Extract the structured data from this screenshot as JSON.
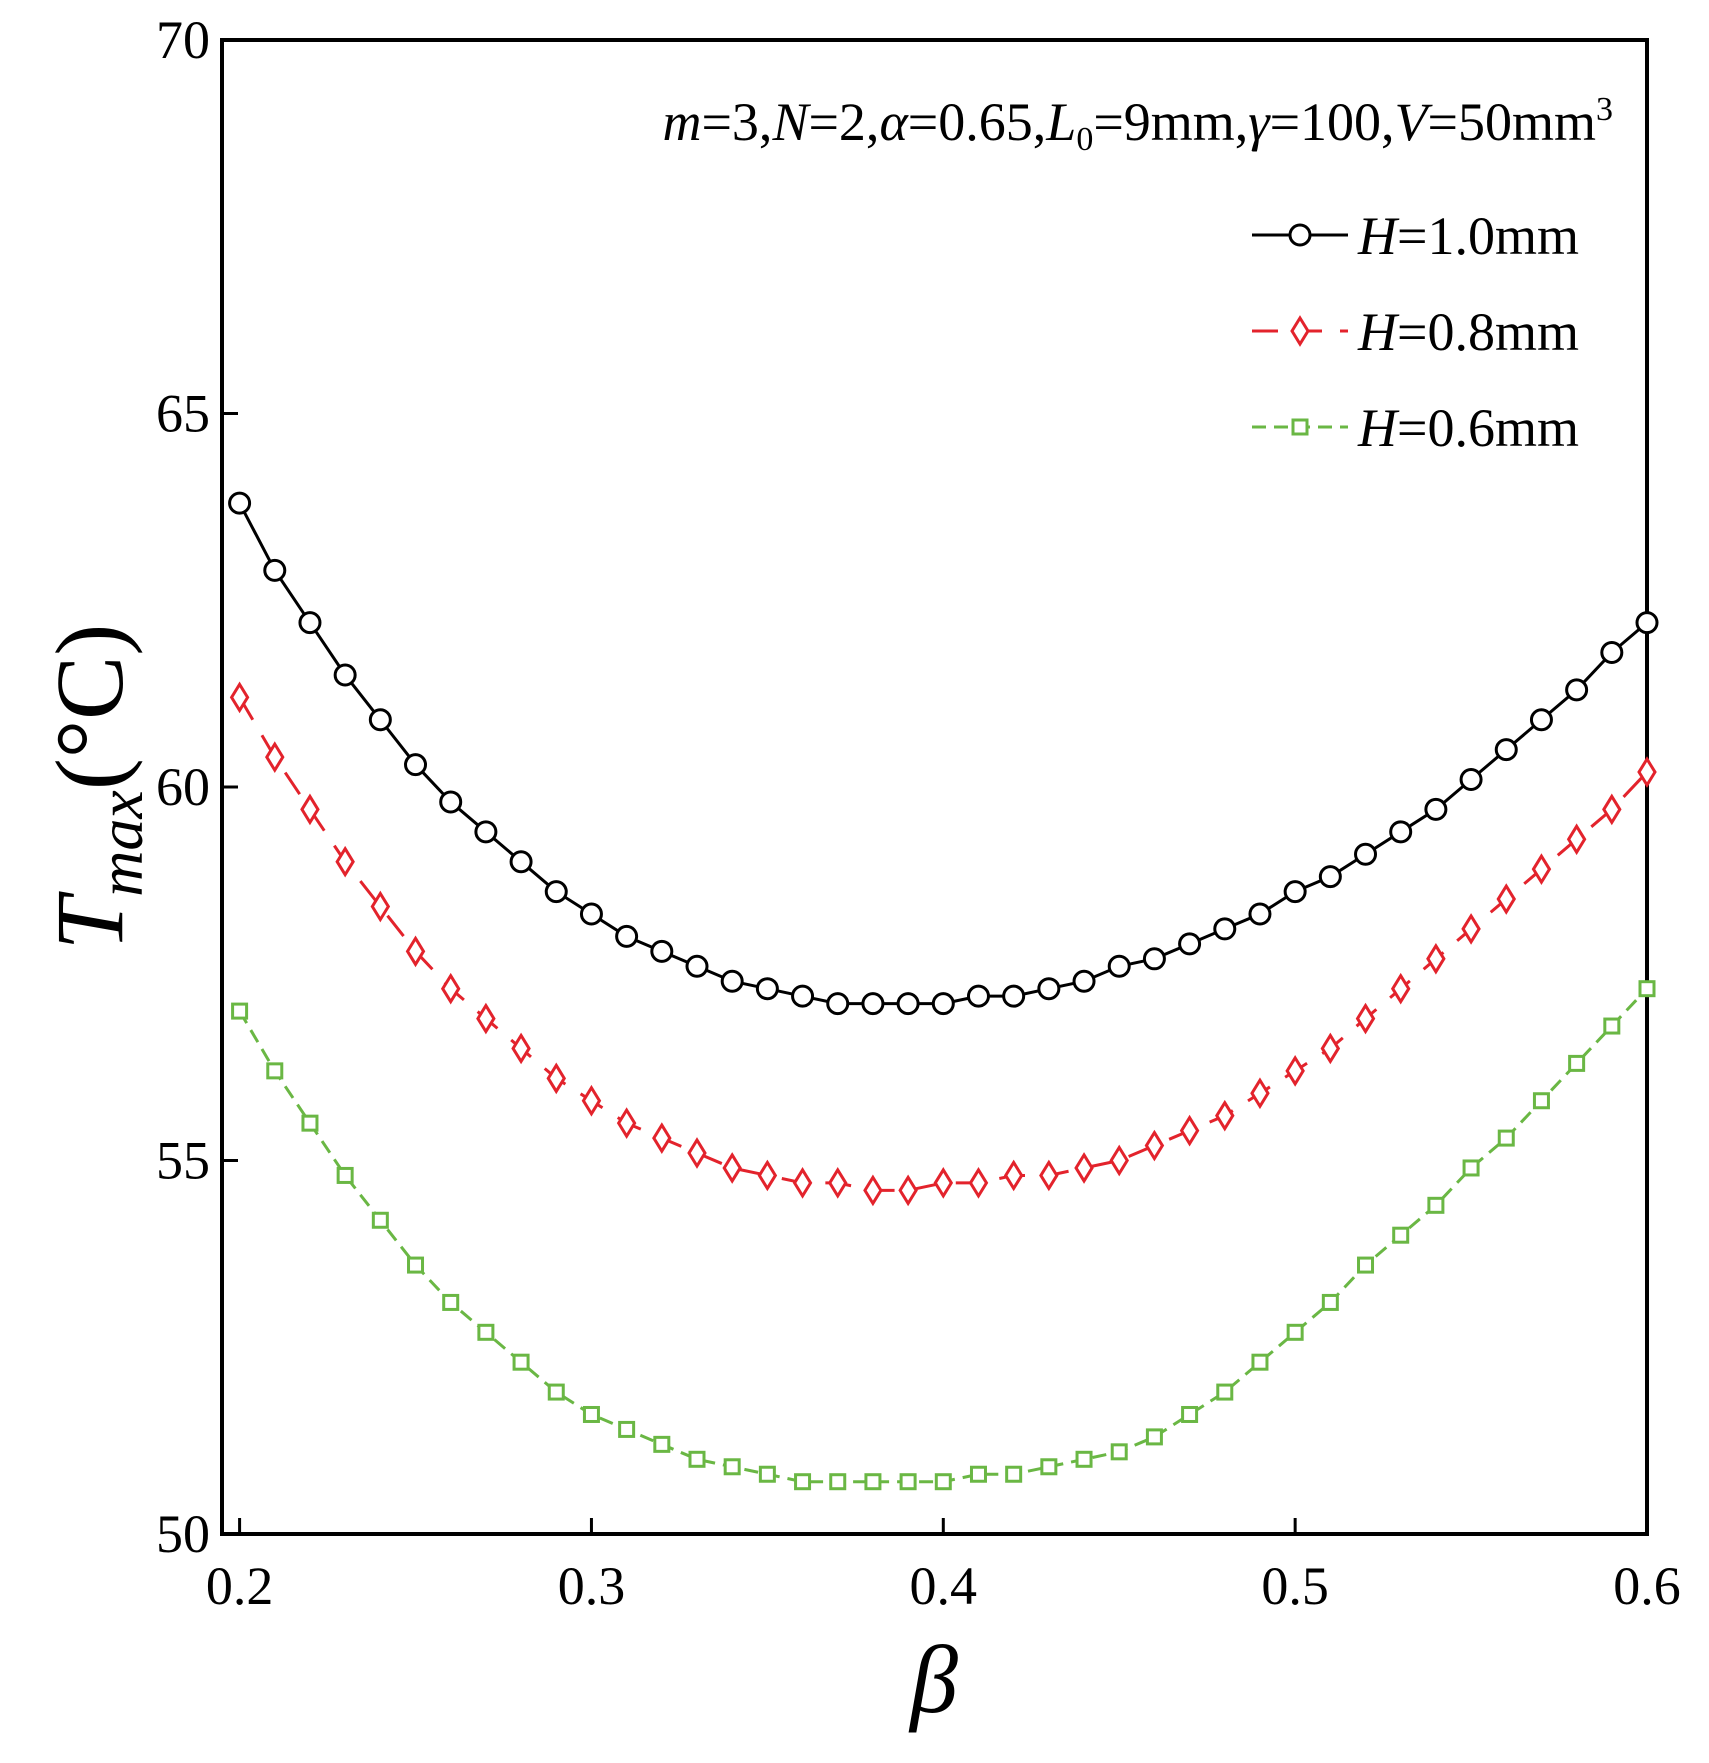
{
  "chart_data": {
    "type": "line",
    "annotation": {
      "parts": [
        {
          "text": "m",
          "italic": true
        },
        {
          "text": "=3,",
          "italic": false
        },
        {
          "text": "N",
          "italic": true
        },
        {
          "text": "=2,",
          "italic": false
        },
        {
          "text": "α",
          "italic": true
        },
        {
          "text": "=0.65,",
          "italic": false
        },
        {
          "text": "L",
          "italic": true
        },
        {
          "text": "0",
          "italic": false,
          "sub": true
        },
        {
          "text": "=9mm,",
          "italic": false
        },
        {
          "text": "γ",
          "italic": true
        },
        {
          "text": "=100,",
          "italic": false
        },
        {
          "text": "V",
          "italic": true
        },
        {
          "text": "=50mm",
          "italic": false
        },
        {
          "text": "3",
          "italic": false,
          "sup": true
        }
      ]
    },
    "xlabel": "β",
    "ylabel": {
      "main": "T",
      "sub": "max",
      "unit": "(°C)"
    },
    "xlim": [
      0.195,
      0.6
    ],
    "ylim": [
      50,
      70
    ],
    "xticks": [
      0.2,
      0.3,
      0.4,
      0.5,
      0.6
    ],
    "xtick_labels": [
      "0.2",
      "0.3",
      "0.4",
      "0.5",
      "0.6"
    ],
    "yticks": [
      50,
      55,
      60,
      65,
      70
    ],
    "ytick_labels": [
      "50",
      "55",
      "60",
      "65",
      "70"
    ],
    "legend_position": "top-right",
    "x": [
      0.2,
      0.21,
      0.22,
      0.23,
      0.24,
      0.25,
      0.26,
      0.27,
      0.28,
      0.29,
      0.3,
      0.31,
      0.32,
      0.33,
      0.34,
      0.35,
      0.36,
      0.37,
      0.38,
      0.39,
      0.4,
      0.41,
      0.42,
      0.43,
      0.44,
      0.45,
      0.46,
      0.47,
      0.48,
      0.49,
      0.5,
      0.51,
      0.52,
      0.53,
      0.54,
      0.55,
      0.56,
      0.57,
      0.58,
      0.59,
      0.6
    ],
    "series": [
      {
        "name": "H=1.0mm",
        "label_var": "H",
        "label_value": "=1.0mm",
        "color": "#000000",
        "marker": "circle",
        "dash": "",
        "values": [
          63.8,
          62.9,
          62.2,
          61.5,
          60.9,
          60.3,
          59.8,
          59.4,
          59.0,
          58.6,
          58.3,
          58.0,
          57.8,
          57.6,
          57.4,
          57.3,
          57.2,
          57.1,
          57.1,
          57.1,
          57.1,
          57.2,
          57.2,
          57.3,
          57.4,
          57.6,
          57.7,
          57.9,
          58.1,
          58.3,
          58.6,
          58.8,
          59.1,
          59.4,
          59.7,
          60.1,
          60.5,
          60.9,
          61.3,
          61.8,
          62.2
        ]
      },
      {
        "name": "H=0.8mm",
        "label_var": "H",
        "label_value": "=0.8mm",
        "color": "#e3232c",
        "marker": "diamond",
        "dash": "26 18",
        "values": [
          61.2,
          60.4,
          59.7,
          59.0,
          58.4,
          57.8,
          57.3,
          56.9,
          56.5,
          56.1,
          55.8,
          55.5,
          55.3,
          55.1,
          54.9,
          54.8,
          54.7,
          54.7,
          54.6,
          54.6,
          54.7,
          54.7,
          54.8,
          54.8,
          54.9,
          55.0,
          55.2,
          55.4,
          55.6,
          55.9,
          56.2,
          56.5,
          56.9,
          57.3,
          57.7,
          58.1,
          58.5,
          58.9,
          59.3,
          59.7,
          60.2
        ]
      },
      {
        "name": "H=0.6mm",
        "label_var": "H",
        "label_value": "=0.6mm",
        "color": "#6ab744",
        "marker": "square",
        "dash": "14 8",
        "values": [
          57.0,
          56.2,
          55.5,
          54.8,
          54.2,
          53.6,
          53.1,
          52.7,
          52.3,
          51.9,
          51.6,
          51.4,
          51.2,
          51.0,
          50.9,
          50.8,
          50.7,
          50.7,
          50.7,
          50.7,
          50.7,
          50.8,
          50.8,
          50.9,
          51.0,
          51.1,
          51.3,
          51.6,
          51.9,
          52.3,
          52.7,
          53.1,
          53.6,
          54.0,
          54.4,
          54.9,
          55.3,
          55.8,
          56.3,
          56.8,
          57.3
        ]
      }
    ]
  }
}
